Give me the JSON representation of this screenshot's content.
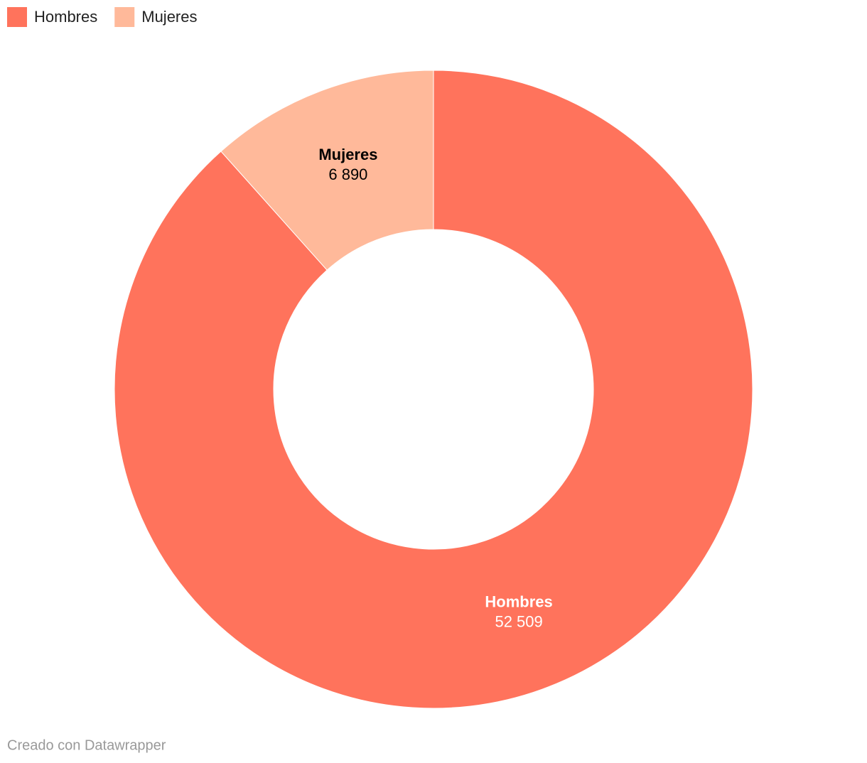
{
  "chart_data": {
    "type": "donut",
    "categories": [
      "Hombres",
      "Mujeres"
    ],
    "values": [
      52509,
      6890
    ],
    "value_labels": [
      "52 509",
      "6 890"
    ],
    "colors": [
      "#ff735c",
      "#ffb99a"
    ],
    "footer": "Creado con Datawrapper"
  }
}
